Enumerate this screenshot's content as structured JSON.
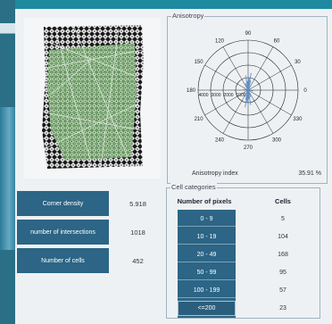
{
  "anisotropy": {
    "title": "Anisotropy",
    "angle_labels": [
      "0",
      "30",
      "60",
      "90",
      "120",
      "150",
      "180",
      "210",
      "240",
      "270",
      "300",
      "330"
    ],
    "radial_labels": [
      "4000",
      "3000",
      "2000",
      "1000"
    ],
    "index_label": "Anisotropy index",
    "index_value": "35.91 %"
  },
  "stats": [
    {
      "label": "Corner density",
      "value": "5.918"
    },
    {
      "label": "number of intersections",
      "value": "1018"
    },
    {
      "label": "Number of cells",
      "value": "452"
    }
  ],
  "cell_categories": {
    "title": "Cell categories",
    "header_pixels": "Number of pixels",
    "header_cells": "Cells",
    "rows": [
      {
        "range": "0 - 9",
        "cells": "5"
      },
      {
        "range": "10 - 19",
        "cells": "104"
      },
      {
        "range": "20 - 49",
        "cells": "168"
      },
      {
        "range": "50 - 99",
        "cells": "95"
      },
      {
        "range": "100 - 199",
        "cells": "57"
      },
      {
        "range": "<=200",
        "cells": "23"
      }
    ]
  },
  "colors": {
    "label_bg": "#2c6585",
    "frame": "#1d7f92",
    "polar_line": "#5b8fd0"
  }
}
